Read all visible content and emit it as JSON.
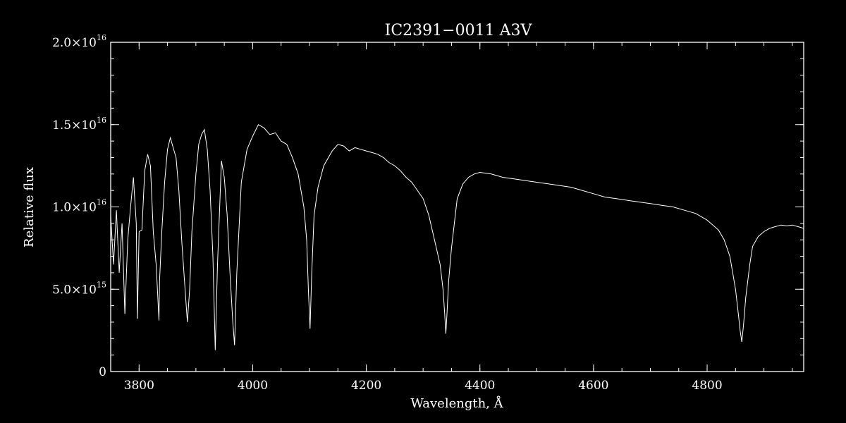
{
  "chart_data": {
    "type": "line",
    "title": "IC2391−0011   A3V",
    "xlabel": "Wavelength, Å",
    "ylabel": "Relative flux",
    "xlim": [
      3750,
      4970
    ],
    "ylim": [
      0,
      2e+16
    ],
    "x_ticks": [
      {
        "value": 3800,
        "label": "3800"
      },
      {
        "value": 4000,
        "label": "4000"
      },
      {
        "value": 4200,
        "label": "4200"
      },
      {
        "value": 4400,
        "label": "4400"
      },
      {
        "value": 4600,
        "label": "4600"
      },
      {
        "value": 4800,
        "label": "4800"
      }
    ],
    "y_ticks": [
      {
        "value": 0,
        "mantissa": "0",
        "exponent": ""
      },
      {
        "value": 5000000000000000.0,
        "mantissa": "5.0×10",
        "exponent": "15"
      },
      {
        "value": 1e+16,
        "mantissa": "1.0×10",
        "exponent": "16"
      },
      {
        "value": 1.5e+16,
        "mantissa": "1.5×10",
        "exponent": "16"
      },
      {
        "value": 2e+16,
        "mantissa": "2.0×10",
        "exponent": "16"
      }
    ],
    "x_minor_step": 50,
    "y_minor_step": 1000000000000000.0,
    "grid": false,
    "line_color": "#ffffff",
    "background": "#000000",
    "series": [
      {
        "x": [
          3750,
          3755,
          3760,
          3765,
          3770,
          3775,
          3780,
          3785,
          3790,
          3795,
          3797,
          3800,
          3805,
          3810,
          3815,
          3820,
          3825,
          3830,
          3835,
          3836,
          3840,
          3845,
          3850,
          3855,
          3860,
          3865,
          3870,
          3875,
          3880,
          3885,
          3889,
          3893,
          3900,
          3905,
          3910,
          3915,
          3920,
          3925,
          3930,
          3934,
          3938,
          3945,
          3950,
          3955,
          3960,
          3965,
          3968,
          3972,
          3980,
          3990,
          4000,
          4010,
          4020,
          4030,
          4040,
          4050,
          4060,
          4070,
          4080,
          4090,
          4095,
          4098,
          4101,
          4104,
          4108,
          4115,
          4125,
          4140,
          4150,
          4160,
          4170,
          4180,
          4190,
          4200,
          4210,
          4220,
          4230,
          4240,
          4250,
          4260,
          4270,
          4280,
          4290,
          4300,
          4310,
          4320,
          4330,
          4335,
          4338,
          4340,
          4342,
          4345,
          4350,
          4360,
          4370,
          4380,
          4390,
          4400,
          4420,
          4440,
          4460,
          4480,
          4500,
          4520,
          4540,
          4560,
          4580,
          4600,
          4620,
          4640,
          4660,
          4680,
          4700,
          4720,
          4740,
          4760,
          4780,
          4800,
          4820,
          4830,
          4840,
          4845,
          4850,
          4855,
          4858,
          4861,
          4864,
          4868,
          4875,
          4880,
          4890,
          4900,
          4910,
          4920,
          4930,
          4940,
          4950,
          4960,
          4970
        ],
        "y": [
          9500000000000000.0,
          6500000000000000.0,
          9800000000000000.0,
          6000000000000000.0,
          9000000000000000.0,
          3500000000000000.0,
          8000000000000000.0,
          1e+16,
          1.18e+16,
          9000000000000000.0,
          3200000000000000.0,
          8500000000000000.0,
          8600000000000000.0,
          1.22e+16,
          1.32e+16,
          1.25e+16,
          8500000000000000.0,
          6500000000000000.0,
          3100000000000000.0,
          5500000000000000.0,
          8500000000000000.0,
          1.15e+16,
          1.35e+16,
          1.42e+16,
          1.36e+16,
          1.3e+16,
          1.1e+16,
          8000000000000000.0,
          5500000000000000.0,
          3000000000000000.0,
          5000000000000000.0,
          8500000000000000.0,
          1.2e+16,
          1.38e+16,
          1.44e+16,
          1.47e+16,
          1.35e+16,
          1.1e+16,
          7000000000000000.0,
          1300000000000000.0,
          6500000000000000.0,
          1.28e+16,
          1.18e+16,
          9500000000000000.0,
          6000000000000000.0,
          3000000000000000.0,
          1600000000000000.0,
          6000000000000000.0,
          1.15e+16,
          1.35e+16,
          1.43e+16,
          1.5e+16,
          1.48e+16,
          1.44e+16,
          1.45e+16,
          1.4e+16,
          1.38e+16,
          1.3e+16,
          1.2e+16,
          1e+16,
          8000000000000000.0,
          5000000000000000.0,
          2600000000000000.0,
          6000000000000000.0,
          9500000000000000.0,
          1.12e+16,
          1.25e+16,
          1.34e+16,
          1.38e+16,
          1.37e+16,
          1.34e+16,
          1.36e+16,
          1.35e+16,
          1.34e+16,
          1.33e+16,
          1.32e+16,
          1.3e+16,
          1.27e+16,
          1.25e+16,
          1.22e+16,
          1.18e+16,
          1.15e+16,
          1.1e+16,
          1.05e+16,
          9500000000000000.0,
          8000000000000000.0,
          6500000000000000.0,
          5000000000000000.0,
          3500000000000000.0,
          2300000000000000.0,
          3500000000000000.0,
          5500000000000000.0,
          7500000000000000.0,
          1.05e+16,
          1.14e+16,
          1.18e+16,
          1.2e+16,
          1.21e+16,
          1.2e+16,
          1.18e+16,
          1.17e+16,
          1.16e+16,
          1.15e+16,
          1.14e+16,
          1.13e+16,
          1.12e+16,
          1.1e+16,
          1.08e+16,
          1.06e+16,
          1.05e+16,
          1.04e+16,
          1.03e+16,
          1.02e+16,
          1.01e+16,
          1e+16,
          9800000000000000.0,
          9600000000000000.0,
          9200000000000000.0,
          8600000000000000.0,
          8000000000000000.0,
          7000000000000000.0,
          6000000000000000.0,
          5000000000000000.0,
          3500000000000000.0,
          2500000000000000.0,
          1800000000000000.0,
          2800000000000000.0,
          4500000000000000.0,
          6500000000000000.0,
          7600000000000000.0,
          8200000000000000.0,
          8500000000000000.0,
          8700000000000000.0,
          8800000000000000.0,
          8900000000000000.0,
          8850000000000000.0,
          8900000000000000.0,
          8800000000000000.0,
          8700000000000000.0
        ]
      }
    ]
  }
}
